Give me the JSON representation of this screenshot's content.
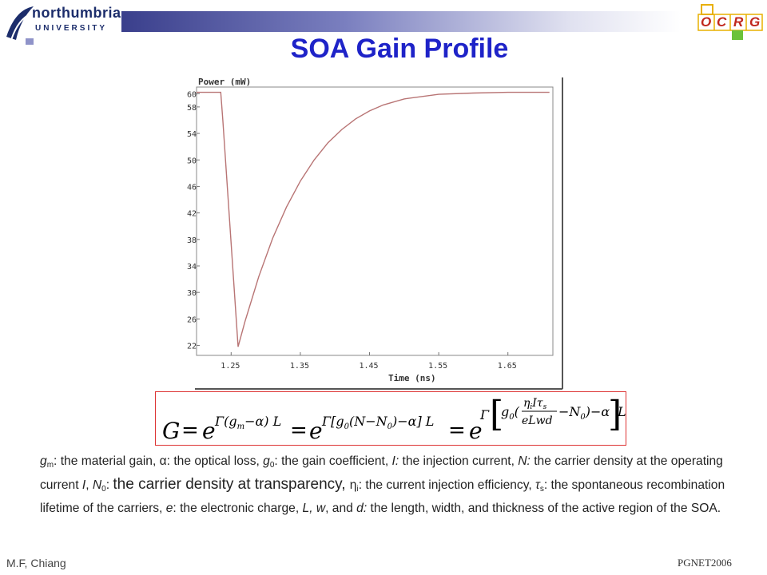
{
  "header": {
    "logo_line1": "northumbria",
    "logo_line2": "UNIVERSITY",
    "ocrg_letters": [
      "O",
      "C",
      "R",
      "G"
    ],
    "title": "SOA Gain Profile"
  },
  "chart_data": {
    "type": "line",
    "title": "",
    "xlabel": "Time (ns)",
    "ylabel": "Power (mW)",
    "xlim": [
      1.2,
      1.715
    ],
    "ylim": [
      20.5,
      61
    ],
    "x_ticks": [
      "1.25",
      "1.35",
      "1.45",
      "1.55",
      "1.65"
    ],
    "x_tick_values": [
      1.25,
      1.35,
      1.45,
      1.55,
      1.65
    ],
    "y_ticks": [
      "60",
      "58",
      "54",
      "50",
      "46",
      "42",
      "38",
      "34",
      "30",
      "26",
      "22"
    ],
    "y_tick_values": [
      60,
      58,
      54,
      50,
      46,
      42,
      38,
      34,
      30,
      26,
      22
    ],
    "grid": false,
    "series": [
      {
        "color": "#b87474",
        "x": [
          1.2,
          1.235,
          1.238,
          1.26,
          1.27,
          1.29,
          1.31,
          1.33,
          1.35,
          1.37,
          1.39,
          1.41,
          1.43,
          1.45,
          1.47,
          1.5,
          1.55,
          1.6,
          1.65,
          1.71
        ],
        "values": [
          60.2,
          60.2,
          56,
          21.8,
          25.6,
          32.4,
          38.2,
          42.9,
          46.8,
          50.0,
          52.6,
          54.6,
          56.2,
          57.4,
          58.3,
          59.2,
          59.9,
          60.1,
          60.2,
          60.2
        ]
      }
    ]
  },
  "equation": {
    "lhs": "G",
    "eq": "=",
    "e": "e",
    "exp1": "Γ(g",
    "exp1_sub": "m",
    "exp1_end": "−α) L",
    "exp2a": "Γ[g",
    "exp2_sub": "0",
    "exp2b": "(N−N",
    "exp2_sub2": "0",
    "exp2c": ")−α] L",
    "exp3a": "Γ",
    "exp3b": "g",
    "exp3_sub": "0",
    "exp3_num": "η",
    "exp3_num_sub": "i",
    "exp3_num2": "Iτ",
    "exp3_num_sub2": "s",
    "exp3_den": "eLwd",
    "exp3c": "−N",
    "exp3_sub2": "0",
    "exp3d": ")−α",
    "exp3e": "L"
  },
  "description": {
    "gm": "g",
    "gm_sub": "m",
    "t1": ":  the material gain, ",
    "alpha": "α",
    "t2": ": the optical loss, ",
    "g0": "g",
    "g0_sub": "0",
    "t3": ": the gain coefficient, ",
    "I": "I:",
    "t4": " the injection current, ",
    "N": "N:",
    "t5": " the carrier density at the operating current ",
    "I2": "I",
    "t6": ", ",
    "N0": "N",
    "N0_sub": "0",
    "t7": ": ",
    "t8": "the carrier density at transparency, ",
    "eta": "η",
    "eta_sub": "i",
    "t9": ": the current injection efficiency, ",
    "tau": "τ",
    "tau_sub": "s",
    "t10": ": the spontaneous recombination lifetime of the carriers, ",
    "e": "e",
    "t11": ": the electronic charge, ",
    "L": "L, w",
    "t12": ", and ",
    "d": "d:",
    "t13": " the length, width, and thickness of the active region of the SOA."
  },
  "footer": {
    "left": "M.F, Chiang",
    "right": "PGNET2006"
  }
}
